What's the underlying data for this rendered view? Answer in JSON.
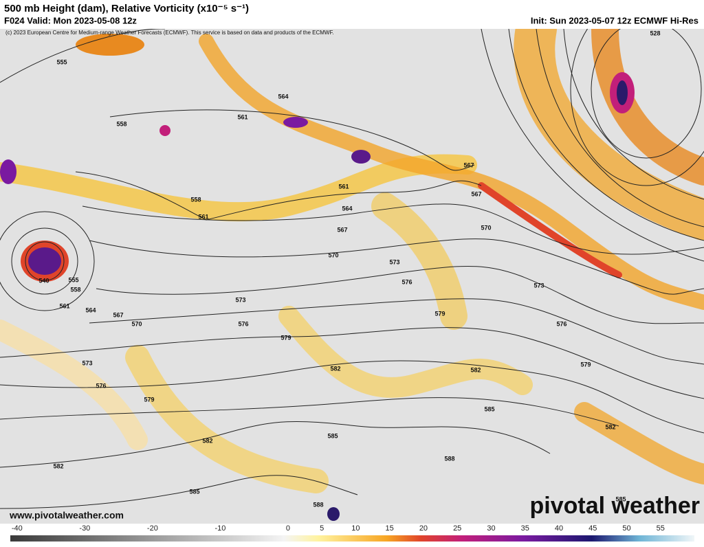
{
  "header": {
    "title": "500 mb Height (dam), Relative Vorticity (x10⁻⁵ s⁻¹)",
    "valid": "F024 Valid: Mon 2023-05-08 12z",
    "init": "Init: Sun 2023-05-07 12z ECMWF Hi-Res",
    "copyright": "(c) 2023 European Centre for Medium-range Weather Forecasts (ECMWF). This service is based on data and products of the ECMWF."
  },
  "map": {
    "contour_labels": [
      555,
      558,
      561,
      564,
      567,
      561,
      558,
      561,
      564,
      567,
      567,
      570,
      570,
      573,
      576,
      573,
      555,
      558,
      561,
      564,
      567,
      570,
      573,
      576,
      579,
      579,
      576,
      579,
      573,
      576,
      579,
      582,
      582,
      585,
      582,
      585,
      582,
      588,
      582,
      585,
      588,
      585,
      528,
      540
    ]
  },
  "colorbar": {
    "lim": [
      -41,
      60
    ],
    "ticks": [
      -40,
      -30,
      -20,
      -10,
      0,
      5,
      10,
      15,
      20,
      25,
      30,
      35,
      40,
      45,
      50,
      55
    ]
  },
  "footer": {
    "url": "www.pivotalweather.com",
    "logo": "pivotal weather"
  }
}
